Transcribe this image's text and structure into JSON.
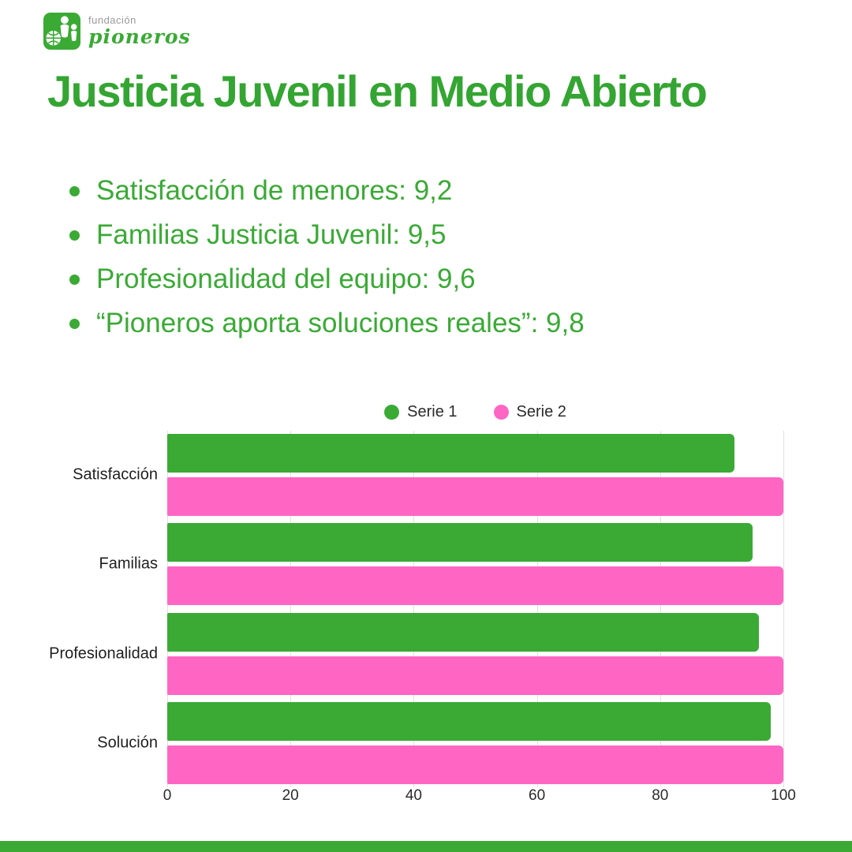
{
  "brand": {
    "logo_icon": "pioneros-logo-icon",
    "logo_text_top": "fundación",
    "logo_text_bottom": "pioneros"
  },
  "title": "Justicia Juvenil en Medio Abierto",
  "bullets": [
    "Satisfacción de menores: 9,2",
    "Familias Justicia Juvenil: 9,5",
    "Profesionalidad del equipo: 9,6",
    "“Pioneros aporta soluciones reales”: 9,8"
  ],
  "chart_data": {
    "type": "bar",
    "orientation": "horizontal",
    "title": "",
    "categories": [
      "Satisfacción",
      "Familias",
      "Profesionalidad",
      "Solución"
    ],
    "series": [
      {
        "name": "Serie 1",
        "color": "#3aaa35",
        "values": [
          92,
          95,
          96,
          98
        ]
      },
      {
        "name": "Serie 2",
        "color": "#ff66c4",
        "values": [
          100,
          100,
          100,
          100
        ]
      }
    ],
    "x_ticks": [
      0,
      20,
      40,
      60,
      80,
      100
    ],
    "xlim": [
      0,
      100
    ],
    "grid": true,
    "legend_position": "top-center"
  },
  "colors": {
    "brand_green": "#3aaa35",
    "title_green": "#34a532",
    "serie1_green": "#3aaa35",
    "serie2_pink": "#ff66c4",
    "gridline": "#e0e0e0",
    "text_dark": "#1f1f1f",
    "footer_bar": "#3aaa35"
  }
}
